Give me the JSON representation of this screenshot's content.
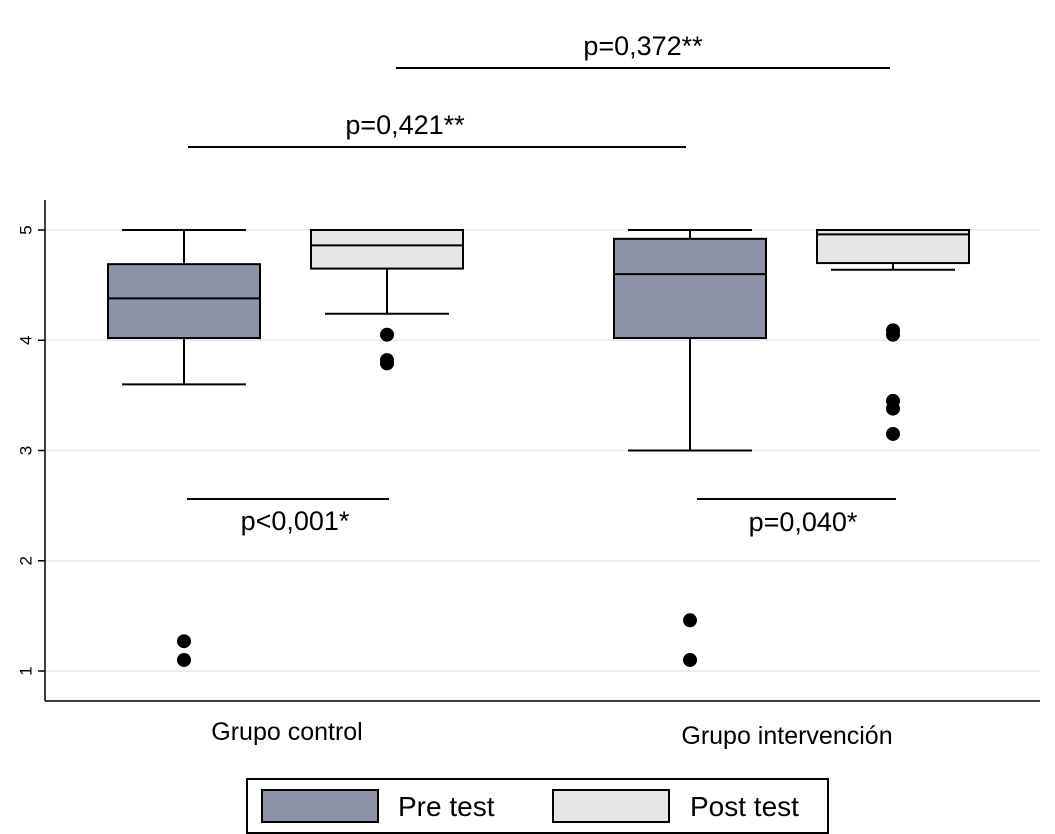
{
  "chart_data": {
    "type": "box",
    "categories": [
      "Grupo control",
      "Grupo intervención"
    ],
    "ylim": [
      0.75,
      5.25
    ],
    "yticks": [
      1,
      2,
      3,
      4,
      5
    ],
    "grid": true,
    "legend_position": "bottom-center",
    "series": [
      {
        "name": "Pre test",
        "color": "#8e94a8",
        "boxes": [
          {
            "whisker_low": 3.6,
            "q1": 4.02,
            "median": 4.38,
            "q3": 4.69,
            "whisker_high": 5.0,
            "outliers": [
              1.27,
              1.1
            ]
          },
          {
            "whisker_low": 3.0,
            "q1": 4.02,
            "median": 4.6,
            "q3": 4.92,
            "whisker_high": 5.0,
            "outliers": [
              1.46,
              1.1
            ]
          }
        ]
      },
      {
        "name": "Post test",
        "color": "#e6e6e6",
        "boxes": [
          {
            "whisker_low": 4.24,
            "q1": 4.65,
            "median": 4.86,
            "q3": 5.0,
            "whisker_high": 5.0,
            "outliers": [
              4.05,
              3.82,
              3.79
            ]
          },
          {
            "whisker_low": 4.64,
            "q1": 4.7,
            "median": 4.96,
            "q3": 5.0,
            "whisker_high": 5.0,
            "outliers": [
              4.09,
              4.05,
              3.45,
              3.38,
              3.15
            ]
          }
        ]
      }
    ],
    "annotations": [
      {
        "text": "p=0,372**",
        "from": [
          0,
          1
        ],
        "to": [
          1,
          1
        ],
        "placement": "top"
      },
      {
        "text": "p=0,421**",
        "from": [
          0,
          0
        ],
        "to": [
          1,
          0
        ],
        "placement": "top"
      },
      {
        "text": "p<0,001*",
        "from": [
          0,
          0
        ],
        "to": [
          0,
          1
        ],
        "placement": "bottom"
      },
      {
        "text": "p=0,040*",
        "from": [
          1,
          0
        ],
        "to": [
          1,
          1
        ],
        "placement": "bottom"
      }
    ]
  }
}
